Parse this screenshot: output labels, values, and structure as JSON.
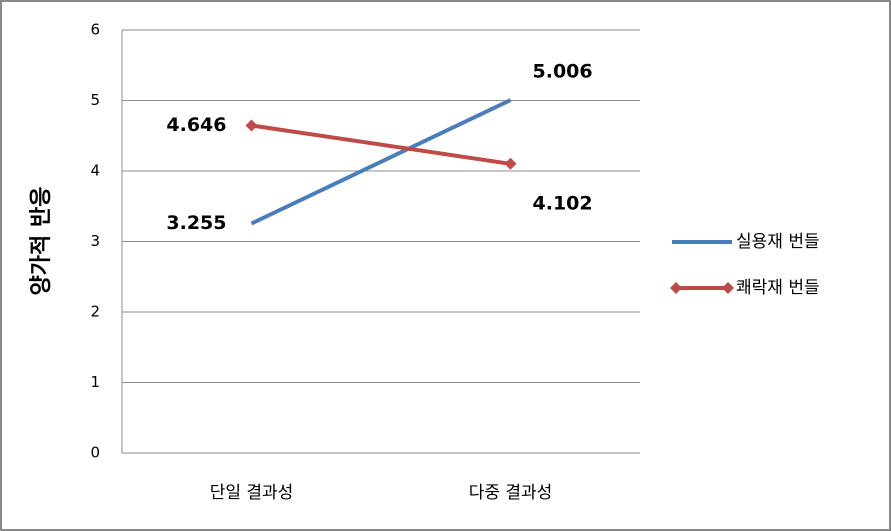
{
  "chart_data": {
    "type": "line",
    "y_label": "양가적 반응",
    "categories": [
      "단일 결과성",
      "다중 결과성"
    ],
    "series": [
      {
        "name": "실용재 번들",
        "color": "#4a7ebb",
        "marker": "none",
        "values": [
          3.255,
          5.006
        ]
      },
      {
        "name": "쾌락재 번들",
        "color": "#be4b48",
        "marker": "diamond",
        "values": [
          4.646,
          4.102
        ]
      }
    ],
    "ylim": [
      0,
      6
    ],
    "yticks": [
      0,
      1,
      2,
      3,
      4,
      5,
      6
    ],
    "grid": true,
    "legend": "right"
  }
}
